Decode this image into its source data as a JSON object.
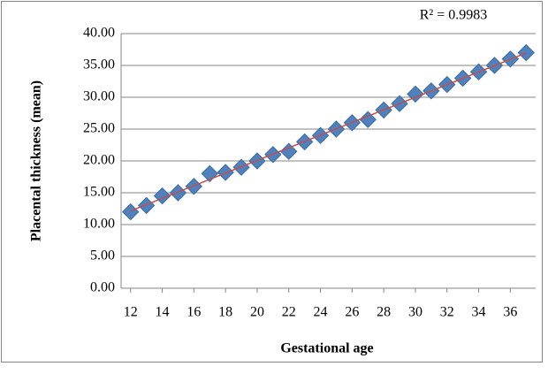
{
  "chart_data": {
    "type": "scatter",
    "x_label": "Gestational age",
    "y_label": "Placental thickness (mean)",
    "annotation": "R² = 0.9983",
    "x": [
      12,
      13,
      14,
      15,
      16,
      17,
      18,
      19,
      20,
      21,
      22,
      23,
      24,
      25,
      26,
      27,
      28,
      29,
      30,
      31,
      32,
      33,
      34,
      35,
      36,
      37
    ],
    "values": [
      12,
      13,
      14.5,
      15,
      16,
      18,
      18.2,
      19,
      20,
      21,
      21.5,
      23,
      24,
      25,
      26,
      26.5,
      28,
      29,
      30.5,
      31,
      32,
      33,
      34,
      35,
      36,
      37
    ],
    "color": "#4f81bd",
    "trendline_color": "#c0504d",
    "xlim": [
      11.4,
      37.6
    ],
    "xticks": [
      12,
      14,
      16,
      18,
      20,
      22,
      24,
      26,
      28,
      30,
      32,
      34,
      36
    ],
    "ylim": [
      0,
      40
    ],
    "yticks": [
      {
        "value": 0,
        "label": "0.00"
      },
      {
        "value": 5,
        "label": "5.00"
      },
      {
        "value": 10,
        "label": "10.00"
      },
      {
        "value": 15,
        "label": "15.00"
      },
      {
        "value": 20,
        "label": "20.00"
      },
      {
        "value": 25,
        "label": "25.00"
      },
      {
        "value": 30,
        "label": "30.00"
      },
      {
        "value": 35,
        "label": "35.00"
      },
      {
        "value": 40,
        "label": "40.00"
      }
    ],
    "grid": true
  }
}
